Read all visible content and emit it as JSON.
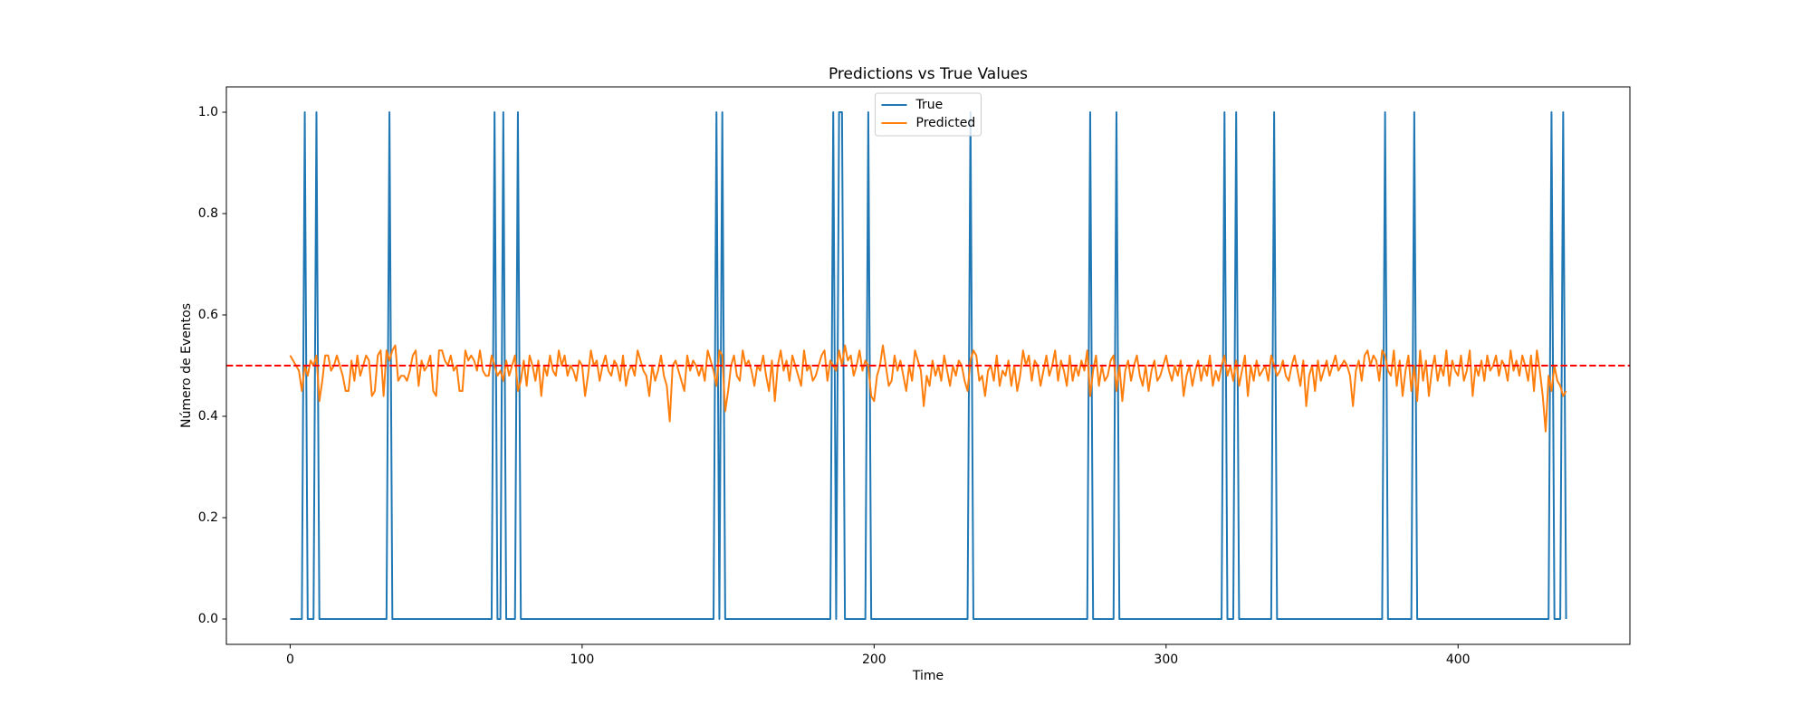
{
  "chart_data": {
    "type": "line",
    "title": "Predictions vs True Values",
    "x_label": "Time",
    "y_label": "Número de Eventos",
    "x": [
      0,
      1,
      2,
      3,
      4,
      5,
      6,
      7,
      8,
      9,
      10,
      11,
      12,
      13,
      14,
      15,
      16,
      17,
      18,
      19,
      20,
      21,
      22,
      23,
      24,
      25,
      26,
      27,
      28,
      29,
      30,
      31,
      32,
      33,
      34,
      35,
      36,
      37,
      38,
      39,
      40,
      41,
      42,
      43,
      44,
      45,
      46,
      47,
      48,
      49,
      50,
      51,
      52,
      53,
      54,
      55,
      56,
      57,
      58,
      59,
      60,
      61,
      62,
      63,
      64,
      65,
      66,
      67,
      68,
      69,
      70,
      71,
      72,
      73,
      74,
      75,
      76,
      77,
      78,
      79,
      80,
      81,
      82,
      83,
      84,
      85,
      86,
      87,
      88,
      89,
      90,
      91,
      92,
      93,
      94,
      95,
      96,
      97,
      98,
      99,
      100,
      101,
      102,
      103,
      104,
      105,
      106,
      107,
      108,
      109,
      110,
      111,
      112,
      113,
      114,
      115,
      116,
      117,
      118,
      119,
      120,
      121,
      122,
      123,
      124,
      125,
      126,
      127,
      128,
      129,
      130,
      131,
      132,
      133,
      134,
      135,
      136,
      137,
      138,
      139,
      140,
      141,
      142,
      143,
      144,
      145,
      146,
      147,
      148,
      149,
      150,
      151,
      152,
      153,
      154,
      155,
      156,
      157,
      158,
      159,
      160,
      161,
      162,
      163,
      164,
      165,
      166,
      167,
      168,
      169,
      170,
      171,
      172,
      173,
      174,
      175,
      176,
      177,
      178,
      179,
      180,
      181,
      182,
      183,
      184,
      185,
      186,
      187,
      188,
      189,
      190,
      191,
      192,
      193,
      194,
      195,
      196,
      197,
      198,
      199,
      200,
      201,
      202,
      203,
      204,
      205,
      206,
      207,
      208,
      209,
      210,
      211,
      212,
      213,
      214,
      215,
      216,
      217,
      218,
      219,
      220,
      221,
      222,
      223,
      224,
      225,
      226,
      227,
      228,
      229,
      230,
      231,
      232,
      233,
      234,
      235,
      236,
      237,
      238,
      239,
      240,
      241,
      242,
      243,
      244,
      245,
      246,
      247,
      248,
      249,
      250,
      251,
      252,
      253,
      254,
      255,
      256,
      257,
      258,
      259,
      260,
      261,
      262,
      263,
      264,
      265,
      266,
      267,
      268,
      269,
      270,
      271,
      272,
      273,
      274,
      275,
      276,
      277,
      278,
      279,
      280,
      281,
      282,
      283,
      284,
      285,
      286,
      287,
      288,
      289,
      290,
      291,
      292,
      293,
      294,
      295,
      296,
      297,
      298,
      299,
      300,
      301,
      302,
      303,
      304,
      305,
      306,
      307,
      308,
      309,
      310,
      311,
      312,
      313,
      314,
      315,
      316,
      317,
      318,
      319,
      320,
      321,
      322,
      323,
      324,
      325,
      326,
      327,
      328,
      329,
      330,
      331,
      332,
      333,
      334,
      335,
      336,
      337,
      338,
      339,
      340,
      341,
      342,
      343,
      344,
      345,
      346,
      347,
      348,
      349,
      350,
      351,
      352,
      353,
      354,
      355,
      356,
      357,
      358,
      359,
      360,
      361,
      362,
      363,
      364,
      365,
      366,
      367,
      368,
      369,
      370,
      371,
      372,
      373,
      374,
      375,
      376,
      377,
      378,
      379,
      380,
      381,
      382,
      383,
      384,
      385,
      386,
      387,
      388,
      389,
      390,
      391,
      392,
      393,
      394,
      395,
      396,
      397,
      398,
      399,
      400,
      401,
      402,
      403,
      404,
      405,
      406,
      407,
      408,
      409,
      410,
      411,
      412,
      413,
      414,
      415,
      416,
      417,
      418,
      419,
      420,
      421,
      422,
      423,
      424,
      425,
      426,
      427,
      428,
      429,
      430,
      431,
      432,
      433,
      434,
      435,
      436,
      437
    ],
    "series": [
      {
        "name": "True",
        "color": "#1f77b4",
        "values": [
          0,
          0,
          0,
          0,
          0,
          1,
          0,
          0,
          0,
          1,
          0,
          0,
          0,
          0,
          0,
          0,
          0,
          0,
          0,
          0,
          0,
          0,
          0,
          0,
          0,
          0,
          0,
          0,
          0,
          0,
          0,
          0,
          0,
          0,
          1,
          0,
          0,
          0,
          0,
          0,
          0,
          0,
          0,
          0,
          0,
          0,
          0,
          0,
          0,
          0,
          0,
          0,
          0,
          0,
          0,
          0,
          0,
          0,
          0,
          0,
          0,
          0,
          0,
          0,
          0,
          0,
          0,
          0,
          0,
          0,
          1,
          0,
          0,
          1,
          0,
          0,
          0,
          0,
          1,
          0,
          0,
          0,
          0,
          0,
          0,
          0,
          0,
          0,
          0,
          0,
          0,
          0,
          0,
          0,
          0,
          0,
          0,
          0,
          0,
          0,
          0,
          0,
          0,
          0,
          0,
          0,
          0,
          0,
          0,
          0,
          0,
          0,
          0,
          0,
          0,
          0,
          0,
          0,
          0,
          0,
          0,
          0,
          0,
          0,
          0,
          0,
          0,
          0,
          0,
          0,
          0,
          0,
          0,
          0,
          0,
          0,
          0,
          0,
          0,
          0,
          0,
          0,
          0,
          0,
          0,
          0,
          1,
          0,
          1,
          0,
          0,
          0,
          0,
          0,
          0,
          0,
          0,
          0,
          0,
          0,
          0,
          0,
          0,
          0,
          0,
          0,
          0,
          0,
          0,
          0,
          0,
          0,
          0,
          0,
          0,
          0,
          0,
          0,
          0,
          0,
          0,
          0,
          0,
          0,
          0,
          0,
          1,
          0,
          1,
          1,
          0,
          0,
          0,
          0,
          0,
          0,
          0,
          0,
          1,
          0,
          0,
          0,
          0,
          0,
          0,
          0,
          0,
          0,
          0,
          0,
          0,
          0,
          0,
          0,
          0,
          0,
          0,
          0,
          0,
          0,
          0,
          0,
          0,
          0,
          0,
          0,
          0,
          0,
          0,
          0,
          0,
          0,
          0,
          1,
          0,
          0,
          0,
          0,
          0,
          0,
          0,
          0,
          0,
          0,
          0,
          0,
          0,
          0,
          0,
          0,
          0,
          0,
          0,
          0,
          0,
          0,
          0,
          0,
          0,
          0,
          0,
          0,
          0,
          0,
          0,
          0,
          0,
          0,
          0,
          0,
          0,
          0,
          0,
          0,
          1,
          0,
          0,
          0,
          0,
          0,
          0,
          0,
          0,
          1,
          0,
          0,
          0,
          0,
          0,
          0,
          0,
          0,
          0,
          0,
          0,
          0,
          0,
          0,
          0,
          0,
          0,
          0,
          0,
          0,
          0,
          0,
          0,
          0,
          0,
          0,
          0,
          0,
          0,
          0,
          0,
          0,
          0,
          0,
          0,
          0,
          1,
          0,
          0,
          0,
          1,
          0,
          0,
          0,
          0,
          0,
          0,
          0,
          0,
          0,
          0,
          0,
          0,
          1,
          0,
          0,
          0,
          0,
          0,
          0,
          0,
          0,
          0,
          0,
          0,
          0,
          0,
          0,
          0,
          0,
          0,
          0,
          0,
          0,
          0,
          0,
          0,
          0,
          0,
          0,
          0,
          0,
          0,
          0,
          0,
          0,
          0,
          0,
          0,
          0,
          0,
          1,
          0,
          0,
          0,
          0,
          0,
          0,
          0,
          0,
          0,
          1,
          0,
          0,
          0,
          0,
          0,
          0,
          0,
          0,
          0,
          0,
          0,
          0,
          0,
          0,
          0,
          0,
          0,
          0,
          0,
          0,
          0,
          0,
          0,
          0,
          0,
          0,
          0,
          0,
          0,
          0,
          0,
          0,
          0,
          0,
          0,
          0,
          0,
          0,
          0,
          0,
          0,
          0,
          0,
          0,
          0,
          0,
          1,
          0,
          0,
          0,
          1,
          0
        ]
      },
      {
        "name": "Predicted",
        "color": "#ff7f0e",
        "values": [
          0.52,
          0.51,
          0.5,
          0.49,
          0.45,
          0.5,
          0.48,
          0.51,
          0.5,
          0.52,
          0.43,
          0.47,
          0.52,
          0.52,
          0.49,
          0.5,
          0.52,
          0.5,
          0.48,
          0.45,
          0.45,
          0.51,
          0.47,
          0.52,
          0.48,
          0.5,
          0.52,
          0.51,
          0.44,
          0.45,
          0.52,
          0.53,
          0.44,
          0.53,
          0.51,
          0.53,
          0.54,
          0.47,
          0.48,
          0.48,
          0.47,
          0.49,
          0.52,
          0.53,
          0.46,
          0.51,
          0.49,
          0.5,
          0.52,
          0.45,
          0.44,
          0.53,
          0.53,
          0.51,
          0.5,
          0.52,
          0.49,
          0.5,
          0.45,
          0.45,
          0.53,
          0.51,
          0.52,
          0.51,
          0.49,
          0.53,
          0.49,
          0.48,
          0.48,
          0.52,
          0.5,
          0.48,
          0.49,
          0.47,
          0.51,
          0.48,
          0.5,
          0.52,
          0.45,
          0.47,
          0.51,
          0.46,
          0.52,
          0.5,
          0.47,
          0.51,
          0.44,
          0.5,
          0.48,
          0.52,
          0.49,
          0.48,
          0.53,
          0.5,
          0.52,
          0.48,
          0.5,
          0.49,
          0.47,
          0.51,
          0.5,
          0.44,
          0.48,
          0.53,
          0.5,
          0.51,
          0.47,
          0.5,
          0.52,
          0.49,
          0.48,
          0.51,
          0.5,
          0.47,
          0.52,
          0.46,
          0.49,
          0.5,
          0.48,
          0.53,
          0.51,
          0.49,
          0.48,
          0.44,
          0.5,
          0.47,
          0.49,
          0.52,
          0.48,
          0.46,
          0.39,
          0.5,
          0.51,
          0.49,
          0.47,
          0.45,
          0.52,
          0.49,
          0.51,
          0.5,
          0.48,
          0.5,
          0.47,
          0.53,
          0.51,
          0.49,
          0.46,
          0.53,
          0.52,
          0.41,
          0.45,
          0.5,
          0.52,
          0.48,
          0.47,
          0.53,
          0.5,
          0.51,
          0.49,
          0.46,
          0.5,
          0.49,
          0.52,
          0.48,
          0.45,
          0.51,
          0.43,
          0.5,
          0.53,
          0.49,
          0.51,
          0.47,
          0.52,
          0.5,
          0.48,
          0.46,
          0.53,
          0.49,
          0.5,
          0.47,
          0.48,
          0.5,
          0.52,
          0.53,
          0.47,
          0.51,
          0.5,
          0.49,
          0.53,
          0.5,
          0.54,
          0.51,
          0.52,
          0.48,
          0.5,
          0.53,
          0.49,
          0.51,
          0.5,
          0.44,
          0.43,
          0.48,
          0.5,
          0.54,
          0.5,
          0.46,
          0.47,
          0.52,
          0.49,
          0.51,
          0.48,
          0.45,
          0.5,
          0.47,
          0.53,
          0.51,
          0.49,
          0.42,
          0.48,
          0.46,
          0.51,
          0.48,
          0.5,
          0.47,
          0.52,
          0.49,
          0.46,
          0.5,
          0.48,
          0.51,
          0.5,
          0.47,
          0.45,
          0.51,
          0.53,
          0.52,
          0.47,
          0.48,
          0.44,
          0.49,
          0.5,
          0.47,
          0.52,
          0.46,
          0.49,
          0.48,
          0.51,
          0.46,
          0.5,
          0.45,
          0.48,
          0.53,
          0.5,
          0.52,
          0.47,
          0.51,
          0.5,
          0.46,
          0.49,
          0.52,
          0.48,
          0.5,
          0.53,
          0.47,
          0.51,
          0.49,
          0.46,
          0.52,
          0.47,
          0.5,
          0.48,
          0.51,
          0.49,
          0.53,
          0.44,
          0.49,
          0.52,
          0.46,
          0.5,
          0.47,
          0.48,
          0.51,
          0.52,
          0.45,
          0.5,
          0.43,
          0.49,
          0.51,
          0.47,
          0.5,
          0.52,
          0.48,
          0.46,
          0.5,
          0.45,
          0.49,
          0.51,
          0.47,
          0.48,
          0.5,
          0.52,
          0.49,
          0.47,
          0.5,
          0.48,
          0.51,
          0.44,
          0.48,
          0.5,
          0.46,
          0.49,
          0.51,
          0.47,
          0.5,
          0.48,
          0.52,
          0.46,
          0.49,
          0.47,
          0.5,
          0.52,
          0.48,
          0.5,
          0.47,
          0.51,
          0.46,
          0.49,
          0.52,
          0.44,
          0.5,
          0.47,
          0.51,
          0.48,
          0.49,
          0.5,
          0.47,
          0.52,
          0.5,
          0.48,
          0.49,
          0.51,
          0.48,
          0.47,
          0.5,
          0.52,
          0.49,
          0.46,
          0.51,
          0.42,
          0.48,
          0.5,
          0.45,
          0.51,
          0.47,
          0.49,
          0.51,
          0.48,
          0.5,
          0.52,
          0.49,
          0.5,
          0.51,
          0.5,
          0.48,
          0.42,
          0.49,
          0.51,
          0.47,
          0.52,
          0.53,
          0.5,
          0.52,
          0.51,
          0.47,
          0.53,
          0.52,
          0.49,
          0.48,
          0.53,
          0.46,
          0.51,
          0.44,
          0.49,
          0.52,
          0.45,
          0.5,
          0.43,
          0.53,
          0.47,
          0.51,
          0.44,
          0.49,
          0.52,
          0.47,
          0.5,
          0.48,
          0.53,
          0.46,
          0.51,
          0.49,
          0.48,
          0.52,
          0.47,
          0.49,
          0.53,
          0.44,
          0.5,
          0.48,
          0.51,
          0.47,
          0.52,
          0.49,
          0.5,
          0.52,
          0.48,
          0.51,
          0.5,
          0.47,
          0.53,
          0.49,
          0.51,
          0.48,
          0.52,
          0.5,
          0.47,
          0.52,
          0.45,
          0.53,
          0.49,
          0.44,
          0.37,
          0.48,
          0.45,
          0.5,
          0.47,
          0.46,
          0.44,
          0.45
        ]
      }
    ],
    "threshold": {
      "value": 0.5,
      "color": "#ff0000",
      "style": "dashed"
    },
    "xlim": [
      -21.85,
      458.85
    ],
    "ylim": [
      -0.05,
      1.05
    ],
    "xticks": [
      0,
      100,
      200,
      300,
      400
    ],
    "yticks": [
      {
        "value": 0,
        "label": "0.0"
      },
      {
        "value": 0.2,
        "label": "0.2"
      },
      {
        "value": 0.4,
        "label": "0.4"
      },
      {
        "value": 0.6,
        "label": "0.6"
      },
      {
        "value": 0.8,
        "label": "0.8"
      },
      {
        "value": 1,
        "label": "1.0"
      }
    ],
    "grid": false,
    "legend": "upper center"
  }
}
